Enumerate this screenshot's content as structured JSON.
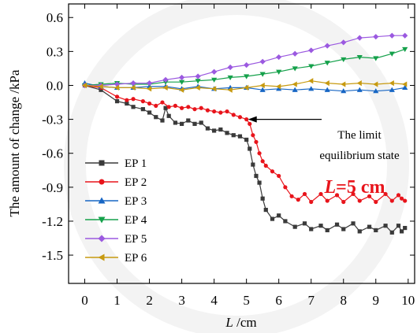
{
  "chart_data": {
    "type": "line",
    "xlabel_var": "L",
    "xlabel_unit": " /cm",
    "ylabel": "The amount of change /kPa",
    "xlim": [
      -0.5,
      10.2
    ],
    "ylim": [
      -1.75,
      0.72
    ],
    "xticks": [
      0,
      1,
      2,
      3,
      4,
      5,
      6,
      7,
      8,
      9,
      10
    ],
    "yticks": [
      0.6,
      0.3,
      0.0,
      -0.3,
      -0.6,
      -0.9,
      -1.2,
      -1.5
    ],
    "ytick_labels": [
      "0.6",
      "0.3",
      "0.0",
      "-0.3",
      "-0.6",
      "-0.9",
      "-1.2",
      "-1.5"
    ],
    "legend_position": "lower-left",
    "annotation_text_line1": "The limit",
    "annotation_text_line2": "equilibrium state",
    "annotation_target": {
      "x": 5.05,
      "y": -0.3
    },
    "condition_var": "L",
    "condition_rest": "=5 cm",
    "condition_color": "#e8141b",
    "series": [
      {
        "name": "EP 1",
        "color": "#3a3a3a",
        "marker": "square",
        "points": [
          [
            0,
            0
          ],
          [
            0.5,
            -0.04
          ],
          [
            1,
            -0.14
          ],
          [
            1.3,
            -0.16
          ],
          [
            1.5,
            -0.19
          ],
          [
            1.8,
            -0.21
          ],
          [
            2,
            -0.24
          ],
          [
            2.2,
            -0.28
          ],
          [
            2.4,
            -0.31
          ],
          [
            2.5,
            -0.2
          ],
          [
            2.6,
            -0.27
          ],
          [
            2.8,
            -0.33
          ],
          [
            3,
            -0.34
          ],
          [
            3.2,
            -0.31
          ],
          [
            3.4,
            -0.34
          ],
          [
            3.6,
            -0.33
          ],
          [
            3.8,
            -0.38
          ],
          [
            4,
            -0.4
          ],
          [
            4.2,
            -0.39
          ],
          [
            4.4,
            -0.42
          ],
          [
            4.6,
            -0.44
          ],
          [
            4.8,
            -0.45
          ],
          [
            5,
            -0.48
          ],
          [
            5.1,
            -0.56
          ],
          [
            5.2,
            -0.7
          ],
          [
            5.3,
            -0.8
          ],
          [
            5.4,
            -0.86
          ],
          [
            5.5,
            -1.0
          ],
          [
            5.6,
            -1.1
          ],
          [
            5.8,
            -1.18
          ],
          [
            6,
            -1.15
          ],
          [
            6.2,
            -1.2
          ],
          [
            6.5,
            -1.25
          ],
          [
            6.8,
            -1.22
          ],
          [
            7,
            -1.27
          ],
          [
            7.3,
            -1.24
          ],
          [
            7.5,
            -1.28
          ],
          [
            7.8,
            -1.23
          ],
          [
            8,
            -1.27
          ],
          [
            8.3,
            -1.22
          ],
          [
            8.5,
            -1.29
          ],
          [
            8.8,
            -1.25
          ],
          [
            9,
            -1.28
          ],
          [
            9.3,
            -1.24
          ],
          [
            9.5,
            -1.3
          ],
          [
            9.7,
            -1.24
          ],
          [
            9.8,
            -1.29
          ],
          [
            9.9,
            -1.26
          ]
        ]
      },
      {
        "name": "EP 2",
        "color": "#e8141b",
        "marker": "circle",
        "points": [
          [
            0,
            0
          ],
          [
            0.5,
            -0.02
          ],
          [
            1,
            -0.1
          ],
          [
            1.3,
            -0.13
          ],
          [
            1.5,
            -0.12
          ],
          [
            1.8,
            -0.14
          ],
          [
            2,
            -0.16
          ],
          [
            2.2,
            -0.18
          ],
          [
            2.4,
            -0.15
          ],
          [
            2.6,
            -0.19
          ],
          [
            2.8,
            -0.18
          ],
          [
            3,
            -0.2
          ],
          [
            3.2,
            -0.19
          ],
          [
            3.4,
            -0.21
          ],
          [
            3.6,
            -0.2
          ],
          [
            3.8,
            -0.22
          ],
          [
            4,
            -0.23
          ],
          [
            4.2,
            -0.24
          ],
          [
            4.4,
            -0.23
          ],
          [
            4.6,
            -0.26
          ],
          [
            4.8,
            -0.28
          ],
          [
            5,
            -0.3
          ],
          [
            5.1,
            -0.34
          ],
          [
            5.2,
            -0.44
          ],
          [
            5.3,
            -0.5
          ],
          [
            5.4,
            -0.6
          ],
          [
            5.5,
            -0.67
          ],
          [
            5.6,
            -0.71
          ],
          [
            5.8,
            -0.76
          ],
          [
            6,
            -0.8
          ],
          [
            6.2,
            -0.9
          ],
          [
            6.4,
            -0.98
          ],
          [
            6.6,
            -1.01
          ],
          [
            6.8,
            -0.96
          ],
          [
            7,
            -1.03
          ],
          [
            7.3,
            -0.96
          ],
          [
            7.5,
            -1.02
          ],
          [
            7.8,
            -0.97
          ],
          [
            8,
            -1.03
          ],
          [
            8.3,
            -0.96
          ],
          [
            8.5,
            -1.02
          ],
          [
            8.8,
            -0.98
          ],
          [
            9,
            -1.03
          ],
          [
            9.3,
            -0.96
          ],
          [
            9.5,
            -1.02
          ],
          [
            9.7,
            -0.97
          ],
          [
            9.8,
            -1.0
          ],
          [
            9.9,
            -1.02
          ]
        ]
      },
      {
        "name": "EP 3",
        "color": "#1766c4",
        "marker": "triangle-up",
        "points": [
          [
            0,
            0.02
          ],
          [
            0.5,
            -0.01
          ],
          [
            1,
            -0.02
          ],
          [
            1.5,
            -0.02
          ],
          [
            2,
            -0.01
          ],
          [
            2.5,
            -0.01
          ],
          [
            3,
            -0.03
          ],
          [
            3.5,
            -0.01
          ],
          [
            4,
            -0.03
          ],
          [
            4.5,
            -0.02
          ],
          [
            5,
            -0.02
          ],
          [
            5.5,
            -0.04
          ],
          [
            6,
            -0.03
          ],
          [
            6.5,
            -0.04
          ],
          [
            7,
            -0.03
          ],
          [
            7.5,
            -0.04
          ],
          [
            8,
            -0.05
          ],
          [
            8.5,
            -0.04
          ],
          [
            9,
            -0.05
          ],
          [
            9.5,
            -0.04
          ],
          [
            9.9,
            -0.02
          ]
        ]
      },
      {
        "name": "EP 4",
        "color": "#15a14b",
        "marker": "triangle-down",
        "points": [
          [
            0,
            0
          ],
          [
            0.5,
            0.01
          ],
          [
            1,
            0.02
          ],
          [
            1.5,
            0.01
          ],
          [
            2,
            0.01
          ],
          [
            2.5,
            0.03
          ],
          [
            3,
            0.03
          ],
          [
            3.5,
            0.04
          ],
          [
            4,
            0.05
          ],
          [
            4.5,
            0.07
          ],
          [
            5,
            0.08
          ],
          [
            5.5,
            0.1
          ],
          [
            6,
            0.12
          ],
          [
            6.5,
            0.15
          ],
          [
            7,
            0.17
          ],
          [
            7.5,
            0.2
          ],
          [
            8,
            0.23
          ],
          [
            8.5,
            0.25
          ],
          [
            9,
            0.24
          ],
          [
            9.5,
            0.28
          ],
          [
            9.9,
            0.32
          ]
        ]
      },
      {
        "name": "EP 5",
        "color": "#9b59e0",
        "marker": "diamond",
        "points": [
          [
            0,
            0
          ],
          [
            0.5,
            0
          ],
          [
            1,
            0.01
          ],
          [
            1.5,
            0.02
          ],
          [
            2,
            0.02
          ],
          [
            2.5,
            0.05
          ],
          [
            3,
            0.07
          ],
          [
            3.5,
            0.08
          ],
          [
            4,
            0.12
          ],
          [
            4.5,
            0.16
          ],
          [
            5,
            0.18
          ],
          [
            5.5,
            0.21
          ],
          [
            6,
            0.25
          ],
          [
            6.5,
            0.28
          ],
          [
            7,
            0.31
          ],
          [
            7.5,
            0.35
          ],
          [
            8,
            0.38
          ],
          [
            8.5,
            0.42
          ],
          [
            9,
            0.43
          ],
          [
            9.5,
            0.44
          ],
          [
            9.9,
            0.44
          ]
        ]
      },
      {
        "name": "EP 6",
        "color": "#c79a10",
        "marker": "triangle-left",
        "points": [
          [
            0,
            0
          ],
          [
            0.5,
            -0.01
          ],
          [
            1,
            -0.02
          ],
          [
            1.5,
            -0.02
          ],
          [
            2,
            -0.03
          ],
          [
            2.5,
            -0.02
          ],
          [
            3,
            -0.04
          ],
          [
            3.5,
            -0.02
          ],
          [
            4,
            -0.03
          ],
          [
            4.5,
            -0.04
          ],
          [
            5,
            -0.02
          ],
          [
            5.5,
            0
          ],
          [
            6,
            -0.01
          ],
          [
            6.5,
            0.01
          ],
          [
            7,
            0.04
          ],
          [
            7.5,
            0.02
          ],
          [
            8,
            0.01
          ],
          [
            8.5,
            0.02
          ],
          [
            9,
            0.01
          ],
          [
            9.5,
            0.02
          ],
          [
            9.9,
            0.01
          ]
        ]
      }
    ]
  }
}
